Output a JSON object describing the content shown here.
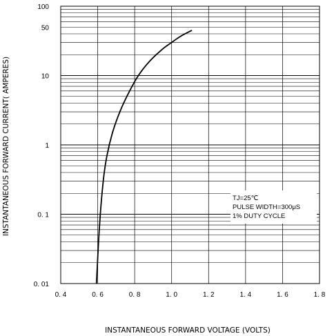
{
  "chart_data": {
    "type": "line",
    "x_scale": "linear",
    "y_scale": "log",
    "xlim": [
      0.4,
      1.8
    ],
    "ylim": [
      0.01,
      100
    ],
    "grid": true,
    "x_ticks": [
      0.4,
      0.6,
      0.8,
      1.0,
      1.2,
      1.4,
      1.6,
      1.8
    ],
    "x_tick_labels": [
      "0. 4",
      "0. 6",
      "0. 8",
      "1. 0",
      "1. 2",
      "1. 4",
      "1. 6",
      "1. 8"
    ],
    "y_ticks": [
      0.01,
      0.1,
      1,
      10,
      50,
      100
    ],
    "y_tick_labels": [
      "0. 01",
      "0. 1",
      "1",
      "10",
      "50",
      "100"
    ],
    "xlabel": "INSTANTANEOUS FORWARD VOLTAGE (VOLTS)",
    "ylabel": "INSTANTANEOUS FORWARD CURRENT( AMPERES)",
    "annotation": [
      "TJ=25℃",
      "PULSE WIDTH=300μS",
      "1% DUTY CYCLE"
    ],
    "series": [
      {
        "x": [
          0.593,
          0.61,
          0.63,
          0.65,
          0.68,
          0.72,
          0.77,
          0.82,
          0.88,
          0.95,
          1.0,
          1.05,
          1.11
        ],
        "y": [
          0.01,
          0.07,
          0.3,
          0.7,
          1.5,
          3.0,
          5.8,
          10,
          16,
          24,
          30,
          37,
          45
        ]
      }
    ]
  }
}
